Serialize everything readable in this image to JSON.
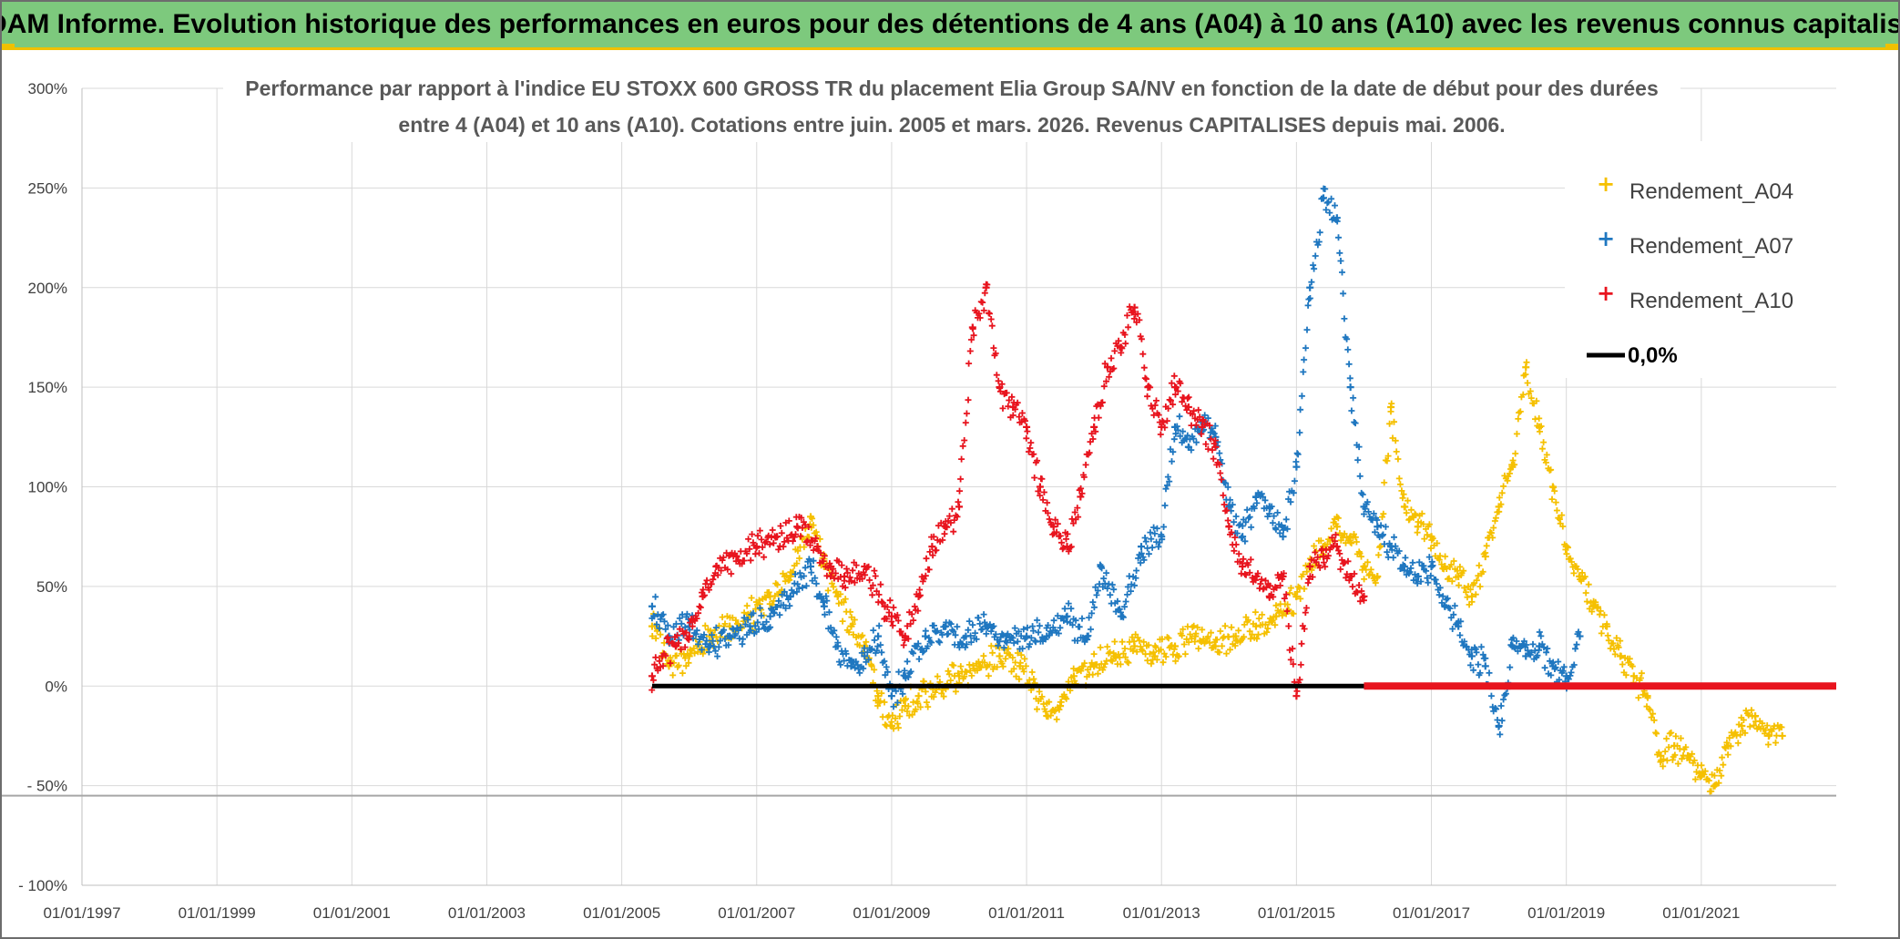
{
  "header": {
    "title": "ADAM Informe. Evolution historique des performances en euros pour des détentions de 4 ans (A04) à 10 ans (A10) avec les revenus connus capitalisés"
  },
  "chart_data": {
    "type": "scatter",
    "title_lines": [
      "Performance par rapport à l'indice EU STOXX 600 GROSS TR  du placement Elia Group SA/NV en fonction de la date de début pour des durées",
      "entre 4 (A04) et 10 ans (A10). Cotations entre juin. 2005 et mars. 2026. Revenus CAPITALISES depuis mai. 2006."
    ],
    "xlabel": "",
    "ylabel": "",
    "x_range": [
      1997.0,
      2023.0
    ],
    "ylim": [
      -100,
      300
    ],
    "x_ticks": [
      "01/01/1997",
      "01/01/1999",
      "01/01/2001",
      "01/01/2003",
      "01/01/2005",
      "01/01/2007",
      "01/01/2009",
      "01/01/2011",
      "01/01/2013",
      "01/01/2015",
      "01/01/2017",
      "01/01/2019",
      "01/01/2021"
    ],
    "x_tick_years": [
      1997,
      1999,
      2001,
      2003,
      2005,
      2007,
      2009,
      2011,
      2013,
      2015,
      2017,
      2019,
      2021
    ],
    "y_ticks": [
      "- 100%",
      "- 50%",
      "0%",
      "50%",
      "100%",
      "150%",
      "200%",
      "250%",
      "300%"
    ],
    "y_tick_values": [
      -100,
      -50,
      0,
      50,
      100,
      150,
      200,
      250,
      300
    ],
    "reference_y": -55,
    "legend": [
      "Rendement_A04",
      "Rendement_A07",
      "Rendement_A10",
      "0,0%"
    ],
    "series": [
      {
        "name": "Rendement_A04",
        "color": "#f5c000",
        "marker": "+",
        "x": [
          2005.45,
          2005.7,
          2006.0,
          2006.3,
          2006.6,
          2006.9,
          2007.2,
          2007.5,
          2007.8,
          2008.0,
          2008.2,
          2008.4,
          2008.6,
          2008.8,
          2009.0,
          2009.2,
          2009.4,
          2009.7,
          2010.0,
          2010.3,
          2010.6,
          2010.9,
          2011.1,
          2011.3,
          2011.5,
          2011.7,
          2012.0,
          2012.3,
          2012.6,
          2012.9,
          2013.2,
          2013.5,
          2013.8,
          2014.1,
          2014.4,
          2014.7,
          2015.0,
          2015.2,
          2015.4,
          2015.6,
          2015.8,
          2016.0,
          2016.2,
          2016.4,
          2016.6,
          2016.8,
          2017.0,
          2017.2,
          2017.4,
          2017.6,
          2017.8,
          2018.0,
          2018.2,
          2018.4,
          2018.6,
          2018.8,
          2019.0,
          2019.2,
          2019.4,
          2019.6,
          2019.8,
          2020.0,
          2020.2,
          2020.4,
          2020.6,
          2020.8,
          2021.0,
          2021.2,
          2021.4,
          2021.6,
          2021.8,
          2022.0,
          2022.2
        ],
        "y": [
          30,
          10,
          15,
          25,
          30,
          35,
          45,
          55,
          85,
          60,
          45,
          30,
          20,
          -5,
          -20,
          -10,
          -5,
          0,
          5,
          10,
          15,
          10,
          0,
          -15,
          -10,
          5,
          10,
          15,
          20,
          15,
          20,
          25,
          20,
          25,
          30,
          35,
          45,
          60,
          70,
          80,
          75,
          60,
          55,
          140,
          90,
          80,
          75,
          60,
          55,
          45,
          65,
          90,
          110,
          160,
          130,
          100,
          70,
          55,
          40,
          30,
          15,
          5,
          -5,
          -35,
          -30,
          -35,
          -45,
          -50,
          -30,
          -20,
          -15,
          -25,
          -25
        ]
      },
      {
        "name": "Rendement_A07",
        "color": "#1f77c0",
        "marker": "+",
        "x": [
          2005.45,
          2005.7,
          2006.0,
          2006.3,
          2006.6,
          2006.9,
          2007.2,
          2007.5,
          2007.8,
          2008.0,
          2008.2,
          2008.4,
          2008.6,
          2008.8,
          2009.0,
          2009.2,
          2009.5,
          2009.8,
          2010.1,
          2010.4,
          2010.7,
          2011.0,
          2011.3,
          2011.6,
          2011.9,
          2012.1,
          2012.4,
          2012.7,
          2013.0,
          2013.2,
          2013.4,
          2013.6,
          2013.8,
          2014.0,
          2014.2,
          2014.4,
          2014.6,
          2014.8,
          2015.0,
          2015.2,
          2015.4,
          2015.6,
          2015.8,
          2016.0,
          2016.2,
          2016.4,
          2016.6,
          2016.8,
          2017.0,
          2017.2,
          2017.4,
          2017.6,
          2017.8,
          2018.0,
          2018.2,
          2018.4,
          2018.6,
          2018.8,
          2019.0,
          2019.2
        ],
        "y": [
          40,
          25,
          30,
          20,
          25,
          30,
          35,
          45,
          60,
          40,
          20,
          10,
          15,
          25,
          -5,
          5,
          25,
          30,
          25,
          30,
          25,
          25,
          25,
          35,
          25,
          60,
          35,
          70,
          75,
          130,
          120,
          130,
          125,
          90,
          75,
          95,
          90,
          75,
          110,
          200,
          245,
          235,
          150,
          90,
          80,
          70,
          60,
          55,
          60,
          40,
          30,
          15,
          10,
          -20,
          20,
          15,
          20,
          10,
          5,
          25
        ]
      },
      {
        "name": "Rendement_A10",
        "color": "#e8141e",
        "marker": "+",
        "x": [
          2005.45,
          2005.6,
          2005.8,
          2006.0,
          2006.2,
          2006.4,
          2006.7,
          2007.0,
          2007.3,
          2007.6,
          2007.9,
          2008.1,
          2008.3,
          2008.6,
          2008.9,
          2009.0,
          2009.2,
          2009.4,
          2009.6,
          2009.8,
          2010.0,
          2010.2,
          2010.4,
          2010.6,
          2010.8,
          2011.0,
          2011.2,
          2011.4,
          2011.6,
          2011.8,
          2012.0,
          2012.2,
          2012.4,
          2012.6,
          2012.8,
          2013.0,
          2013.2,
          2013.4,
          2013.6,
          2013.8,
          2014.0,
          2014.2,
          2014.4,
          2014.6,
          2014.8,
          2015.0,
          2015.2,
          2015.4,
          2015.6,
          2015.8,
          2016.0
        ],
        "y": [
          5,
          15,
          20,
          25,
          45,
          60,
          65,
          70,
          75,
          80,
          70,
          60,
          55,
          60,
          40,
          35,
          25,
          45,
          70,
          80,
          90,
          180,
          200,
          150,
          140,
          130,
          100,
          80,
          70,
          95,
          130,
          160,
          170,
          190,
          150,
          130,
          150,
          140,
          130,
          120,
          80,
          60,
          55,
          45,
          55,
          -5,
          60,
          65,
          70,
          55,
          45
        ]
      },
      {
        "name": "0,0%",
        "color": "#000000",
        "marker": "line",
        "x": [
          2005.45,
          2016.0
        ],
        "y": [
          0,
          0
        ]
      },
      {
        "name": "zero_after_2016",
        "color": "#e8141e",
        "marker": "line",
        "x": [
          2016.0,
          2023.0
        ],
        "y": [
          0,
          0
        ]
      }
    ]
  }
}
